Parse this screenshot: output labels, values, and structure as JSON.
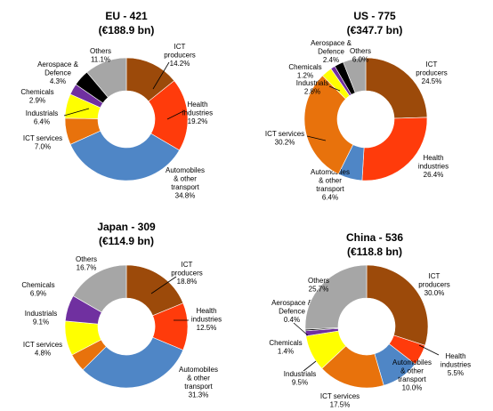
{
  "colors": {
    "ict_producers": "#9C4A0A",
    "health": "#FF3B0B",
    "auto": "#4F86C6",
    "ict_services": "#E8720C",
    "industrials": "#FFFF00",
    "chemicals": "#7030A0",
    "aerospace": "#000000",
    "others": "#A6A6A6"
  },
  "chart_data": [
    {
      "type": "pie",
      "title": "EU - 421",
      "subtitle": "(€188.9 bn)",
      "slices": [
        {
          "label": "ICT producers",
          "value": 14.2,
          "pct": "14.2%",
          "color_key": "ict_producers"
        },
        {
          "label": "Health industries",
          "value": 19.2,
          "pct": "19.2%",
          "color_key": "health"
        },
        {
          "label": "Automobiles & other transport",
          "value": 34.8,
          "pct": "34.8%",
          "color_key": "auto"
        },
        {
          "label": "ICT services",
          "value": 7.0,
          "pct": "7.0%",
          "color_key": "ict_services"
        },
        {
          "label": "Industrials",
          "value": 6.4,
          "pct": "6.4%",
          "color_key": "industrials"
        },
        {
          "label": "Chemicals",
          "value": 2.9,
          "pct": "2.9%",
          "color_key": "chemicals"
        },
        {
          "label": "Aerospace & Defence",
          "value": 4.3,
          "pct": "4.3%",
          "color_key": "aerospace"
        },
        {
          "label": "Others",
          "value": 11.1,
          "pct": "11.1%",
          "color_key": "others"
        }
      ]
    },
    {
      "type": "pie",
      "title": "US  - 775",
      "subtitle": "(€347.7 bn)",
      "slices": [
        {
          "label": "ICT producers",
          "value": 24.5,
          "pct": "24.5%",
          "color_key": "ict_producers"
        },
        {
          "label": "Health industries",
          "value": 26.4,
          "pct": "26.4%",
          "color_key": "health"
        },
        {
          "label": "Automobiles & other transport",
          "value": 6.4,
          "pct": "6.4%",
          "color_key": "auto"
        },
        {
          "label": "ICT services",
          "value": 30.2,
          "pct": "30.2%",
          "color_key": "ict_services"
        },
        {
          "label": "Industrials",
          "value": 2.8,
          "pct": "2.8%",
          "color_key": "industrials"
        },
        {
          "label": "Chemicals",
          "value": 1.2,
          "pct": "1.2%",
          "color_key": "chemicals"
        },
        {
          "label": "Aerospace & Defence",
          "value": 2.4,
          "pct": "2.4%",
          "color_key": "aerospace"
        },
        {
          "label": "Others",
          "value": 6.0,
          "pct": "6.0%",
          "color_key": "others"
        }
      ]
    },
    {
      "type": "pie",
      "title": "Japan - 309",
      "subtitle": "(€114.9 bn)",
      "slices": [
        {
          "label": "ICT producers",
          "value": 18.8,
          "pct": "18.8%",
          "color_key": "ict_producers"
        },
        {
          "label": "Health industries",
          "value": 12.5,
          "pct": "12.5%",
          "color_key": "health"
        },
        {
          "label": "Automobiles & other transport",
          "value": 31.3,
          "pct": "31.3%",
          "color_key": "auto"
        },
        {
          "label": "ICT services",
          "value": 4.8,
          "pct": "4.8%",
          "color_key": "ict_services"
        },
        {
          "label": "Industrials",
          "value": 9.1,
          "pct": "9.1%",
          "color_key": "industrials"
        },
        {
          "label": "Chemicals",
          "value": 6.9,
          "pct": "6.9%",
          "color_key": "chemicals"
        },
        {
          "label": "Others",
          "value": 16.7,
          "pct": "16.7%",
          "color_key": "others"
        }
      ]
    },
    {
      "type": "pie",
      "title": "China  - 536",
      "subtitle": "(€118.8 bn)",
      "slices": [
        {
          "label": "ICT producers",
          "value": 30.0,
          "pct": "30.0%",
          "color_key": "ict_producers"
        },
        {
          "label": "Health industries",
          "value": 5.5,
          "pct": "5.5%",
          "color_key": "health"
        },
        {
          "label": "Automobiles & other transport",
          "value": 10.0,
          "pct": "10.0%",
          "color_key": "auto"
        },
        {
          "label": "ICT services",
          "value": 17.5,
          "pct": "17.5%",
          "color_key": "ict_services"
        },
        {
          "label": "Industrials",
          "value": 9.5,
          "pct": "9.5%",
          "color_key": "industrials"
        },
        {
          "label": "Chemicals",
          "value": 1.4,
          "pct": "1.4%",
          "color_key": "chemicals"
        },
        {
          "label": "Aerospace & Defence",
          "value": 0.4,
          "pct": "0.4%",
          "color_key": "aerospace"
        },
        {
          "label": "Others",
          "value": 25.7,
          "pct": "25.7%",
          "color_key": "others"
        }
      ]
    }
  ]
}
